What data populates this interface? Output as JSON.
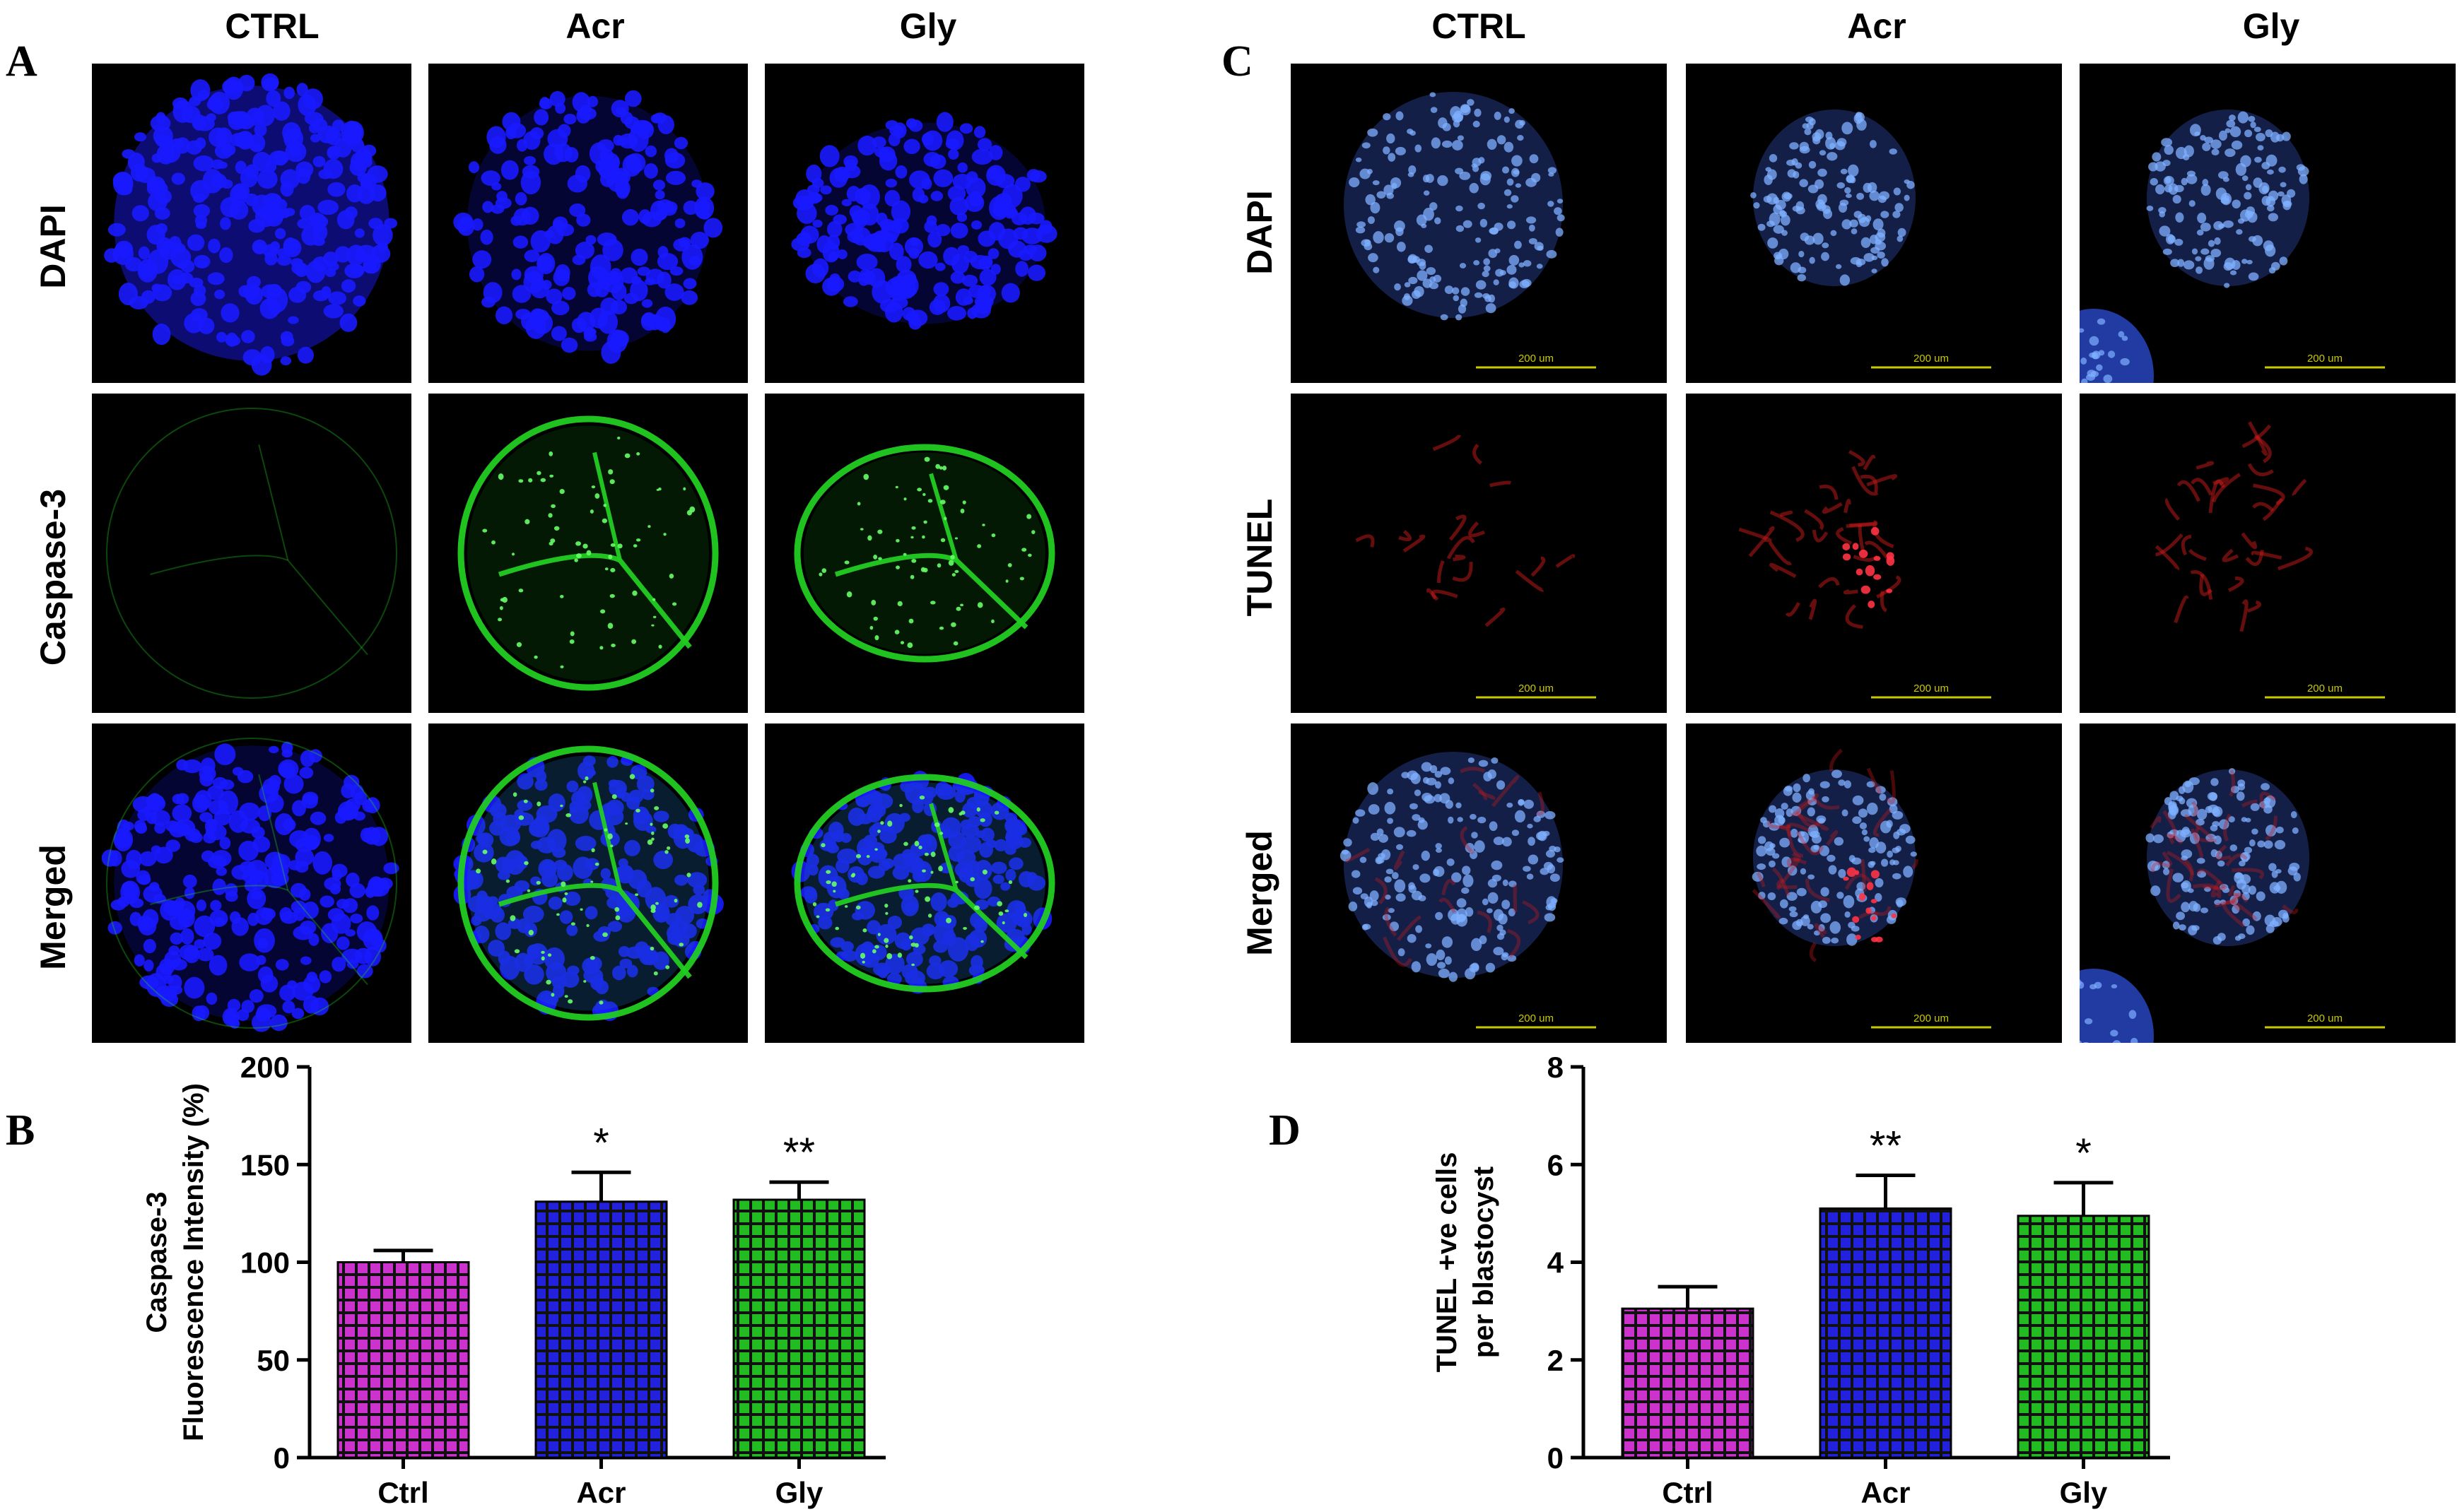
{
  "panel_a": {
    "letter": "A",
    "columns": [
      "CTRL",
      "Acr",
      "Gly"
    ],
    "rows": [
      "DAPI",
      "Caspase-3",
      "Merged"
    ]
  },
  "panel_c": {
    "letter": "C",
    "columns": [
      "CTRL",
      "Acr",
      "Gly"
    ],
    "rows": [
      "DAPI",
      "TUNEL",
      "Merged"
    ],
    "scale_bar": "200 um"
  },
  "colors": {
    "dapi": "#1a1aff",
    "caspase": "#22cc22",
    "tunel": "#cc1a1a",
    "ctrl_bar": "#cc33cc",
    "acr_bar": "#2222dd",
    "gly_bar": "#22bb22"
  },
  "chart_data": [
    {
      "letter": "B",
      "type": "bar",
      "categories": [
        "Ctrl",
        "Acr",
        "Gly"
      ],
      "values": [
        100,
        131,
        132
      ],
      "errors": [
        6,
        15,
        9
      ],
      "significance": [
        "",
        "*",
        "**"
      ],
      "ylabel_lines": [
        "Caspase-3",
        "Fluorescence Intensity (%)"
      ],
      "ylim": [
        0,
        200
      ],
      "yticks": [
        0,
        50,
        100,
        150,
        200
      ]
    },
    {
      "letter": "D",
      "type": "bar",
      "categories": [
        "Ctrl",
        "Acr",
        "Gly"
      ],
      "values": [
        3.05,
        5.1,
        4.95
      ],
      "errors": [
        0.45,
        0.68,
        0.68
      ],
      "significance": [
        "",
        "**",
        "*"
      ],
      "ylabel_lines": [
        "TUNEL +ve cells",
        "per blastocyst"
      ],
      "ylim": [
        0,
        8
      ],
      "yticks": [
        0,
        2,
        4,
        6,
        8
      ]
    }
  ]
}
